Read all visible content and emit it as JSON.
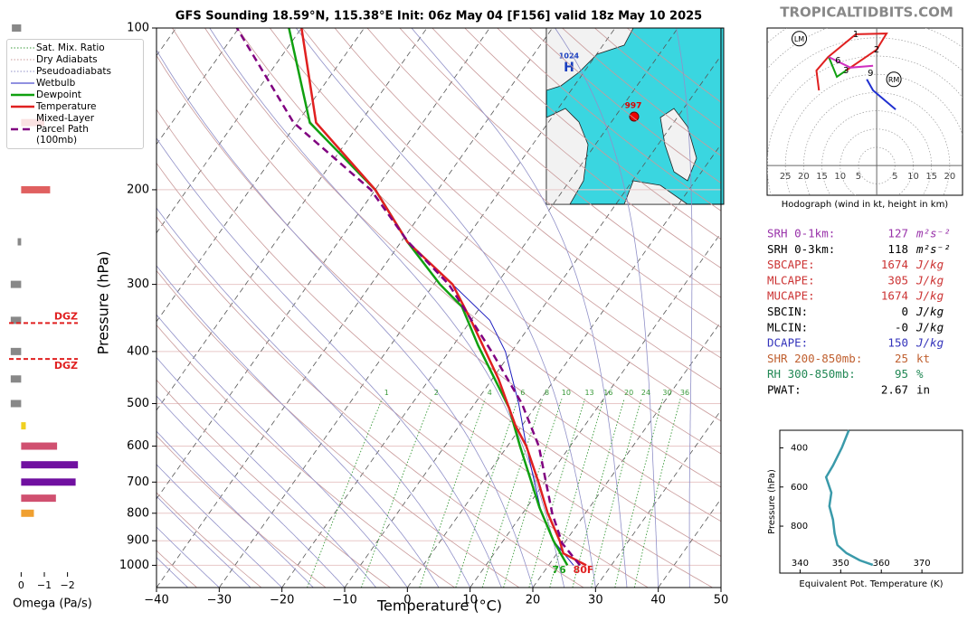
{
  "header": {
    "site": "TROPICALTIDBITS.COM"
  },
  "chart_data": [
    {
      "type": "skewt",
      "title": "GFS Sounding 18.59°N, 115.38°E Init: 06z May 04 [F156] valid 18z May 10 2025",
      "xlabel": "Temperature (°C)",
      "ylabel": "Pressure (hPa)",
      "xlim": [
        -40,
        50
      ],
      "ylim": [
        1100,
        100
      ],
      "log_y": true,
      "xticks": [
        {
          "value": -40,
          "label": "−40"
        },
        {
          "value": -30,
          "label": "−30"
        },
        {
          "value": -20,
          "label": "−20"
        },
        {
          "value": -10,
          "label": "−10"
        },
        0,
        10,
        20,
        30,
        40,
        50
      ],
      "yticks": [
        100,
        200,
        300,
        400,
        500,
        600,
        700,
        800,
        900,
        1000
      ],
      "background_lines": [
        {
          "name": "Sat. Mix. Ratio",
          "color": "#3a9a3a",
          "linestyle": "dotted"
        },
        {
          "name": "Dry Adiabats",
          "color": "#c99a9a",
          "linestyle": "dotted"
        },
        {
          "name": "Pseudoadiabats",
          "color": "#9090c8",
          "linestyle": "dotted"
        }
      ],
      "mixing_ratios": [
        1,
        2,
        4,
        6,
        8,
        10,
        13,
        16,
        20,
        24,
        30,
        36
      ],
      "series": [
        {
          "name": "Wetbulb",
          "color": "#2020c0",
          "linestyle": "solid",
          "linewidth": 1,
          "pressure": [
            1000,
            900,
            800,
            600,
            500,
            400,
            350,
            300
          ],
          "values": [
            24,
            18,
            13,
            3,
            -3,
            -11,
            -17,
            -27
          ]
        },
        {
          "name": "Dewpoint",
          "color": "#10a010",
          "linestyle": "solid",
          "linewidth": 2.5,
          "pressure": [
            1000,
            900,
            780,
            600,
            510,
            390,
            330,
            300,
            250,
            200,
            150,
            100
          ],
          "values": [
            23,
            18,
            12,
            2,
            -4,
            -16,
            -23,
            -29,
            -39,
            -50,
            -68,
            -82
          ]
        },
        {
          "name": "Temperature",
          "color": "#e02020",
          "linestyle": "solid",
          "linewidth": 2.5,
          "pressure": [
            1000,
            950,
            900,
            800,
            700,
            600,
            550,
            450,
            350,
            300,
            250,
            200,
            150,
            100
          ],
          "values": [
            26,
            21,
            19,
            14,
            9,
            3,
            -1,
            -9,
            -20,
            -27,
            -39,
            -50,
            -67,
            -80
          ]
        },
        {
          "name": "Mixed-Layer Parcel Path (100mb)",
          "color": "#800080",
          "linestyle": "dashed",
          "linewidth": 2.5,
          "pressure": [
            1000,
            910,
            800,
            600,
            500,
            400,
            300,
            250,
            200,
            150,
            100
          ],
          "values": [
            25,
            19.7,
            14.7,
            5,
            -2.5,
            -13.2,
            -27.6,
            -38.9,
            -50.7,
            -70.6,
            -90.3
          ]
        }
      ],
      "surface_labels": {
        "dewpoint": "76",
        "temperature": "80F"
      },
      "map_labels": {
        "high": "1024",
        "high_symbol": "H",
        "low": "997"
      }
    },
    {
      "type": "omega",
      "xlabel": "Omega (Pa/s)",
      "xlim": [
        0.6,
        -2.6
      ],
      "xticks": [
        0,
        {
          "value": -1,
          "label": "−1"
        },
        {
          "value": -2,
          "label": "−2"
        }
      ],
      "pressure": [
        100,
        150,
        200,
        250,
        300,
        350,
        400,
        450,
        500,
        550,
        600,
        650,
        700,
        750,
        800
      ],
      "values": [
        0.4,
        -1.0,
        -1.25,
        0.15,
        0.45,
        0.45,
        0.45,
        0.45,
        0.45,
        -0.2,
        -1.55,
        -2.45,
        -2.35,
        -1.5,
        -0.55
      ],
      "colors": [
        "#888888",
        "#e06060",
        "#e06060",
        "#888888",
        "#888888",
        "#888888",
        "#888888",
        "#888888",
        "#888888",
        "#f0d020",
        "#d05070",
        "#7010a0",
        "#7010a0",
        "#d05070",
        "#f0a030"
      ],
      "dgz": {
        "pressure": [
          354,
          413
        ],
        "labels": [
          "DGZ",
          "DGZ"
        ],
        "color": "#e02020"
      }
    },
    {
      "type": "hodograph",
      "title": "Hodograph (wind in kt, height in km)",
      "xlim": [
        -30,
        23.5
      ],
      "ylim": [
        -8.1,
        37.5
      ],
      "xticks": [
        {
          "value": -25,
          "label": "25"
        },
        {
          "value": -20,
          "label": "20"
        },
        {
          "value": -15,
          "label": "15"
        },
        {
          "value": -10,
          "label": "10"
        },
        {
          "value": -5,
          "label": "5"
        },
        5,
        10,
        15,
        20
      ],
      "series": [
        {
          "color": "#e02020",
          "u": [
            -15.8,
            -16.5,
            -13.3,
            -5.7,
            2.7,
            0,
            -4.7,
            -8.4
          ],
          "v": [
            20.5,
            25.9,
            29.6,
            35.8,
            36.0,
            31.6,
            28.4,
            25.9
          ]
        },
        {
          "color": "#10a010",
          "u": [
            -8.4,
            -10.9,
            -13.1
          ],
          "v": [
            25.9,
            24.2,
            29.6
          ]
        },
        {
          "color": "#d030c0",
          "u": [
            -13.1,
            -7.2,
            -1.0
          ],
          "v": [
            29.6,
            26.7,
            27.2
          ]
        },
        {
          "color": "#2030d0",
          "u": [
            -2.7,
            -1.0,
            5.2
          ],
          "v": [
            23.5,
            20.5,
            15.3
          ]
        }
      ],
      "height_labels": {
        "values": [
          1,
          2,
          3,
          6,
          9
        ],
        "u": [
          -5.7,
          0,
          -8.4,
          -10.6,
          -1.7
        ],
        "v": [
          35.8,
          31.6,
          25.9,
          28.6,
          25.2
        ]
      },
      "storm_motion": [
        {
          "label": "LM",
          "u": -21.2,
          "v": 34.6
        },
        {
          "label": "RM",
          "u": 4.7,
          "v": 23.5
        }
      ]
    },
    {
      "type": "table",
      "rows": [
        {
          "label": "SRH 0-1km:",
          "value": "127",
          "unit": "m²s⁻²",
          "color": "#9933aa"
        },
        {
          "label": "SRH 0-3km:",
          "value": "118",
          "unit": "m²s⁻²",
          "color": "#000000"
        },
        {
          "label": "SBCAPE:",
          "value": "1674",
          "unit": "J/kg",
          "color": "#cc3333"
        },
        {
          "label": "MLCAPE:",
          "value": "305",
          "unit": "J/kg",
          "color": "#cc3333"
        },
        {
          "label": "MUCAPE:",
          "value": "1674",
          "unit": "J/kg",
          "color": "#cc3333"
        },
        {
          "label": "SBCIN:",
          "value": "0",
          "unit": "J/kg",
          "color": "#000000"
        },
        {
          "label": "MLCIN:",
          "value": "-0",
          "unit": "J/kg",
          "color": "#000000"
        },
        {
          "label": "DCAPE:",
          "value": "150",
          "unit": "J/kg",
          "color": "#3333bb"
        },
        {
          "label": "SHR 200-850mb:",
          "value": "25",
          "unit": "kt",
          "color": "#c06030"
        },
        {
          "label": "RH 300-850mb:",
          "value": "95",
          "unit": "%",
          "color": "#228855"
        },
        {
          "label": "PWAT:",
          "value": "2.67",
          "unit": "in",
          "color": "#000000"
        }
      ]
    },
    {
      "type": "line",
      "xlabel": "Equivalent Pot. Temperature (K)",
      "ylabel": "Pressure (hPa)",
      "xlim": [
        335,
        380
      ],
      "ylim": [
        1040,
        310
      ],
      "xticks": [
        340,
        350,
        360,
        370
      ],
      "yticks": [
        400,
        600,
        800
      ],
      "color": "#3a9aaa",
      "x": [
        352.0,
        350.3,
        348.1,
        346.4,
        347.7,
        347.2,
        348.1,
        348.5,
        349.2,
        351.4,
        354.7,
        357.9
      ],
      "y": [
        310,
        398,
        490,
        550,
        629,
        698,
        767,
        837,
        897,
        938,
        975,
        998
      ]
    }
  ]
}
